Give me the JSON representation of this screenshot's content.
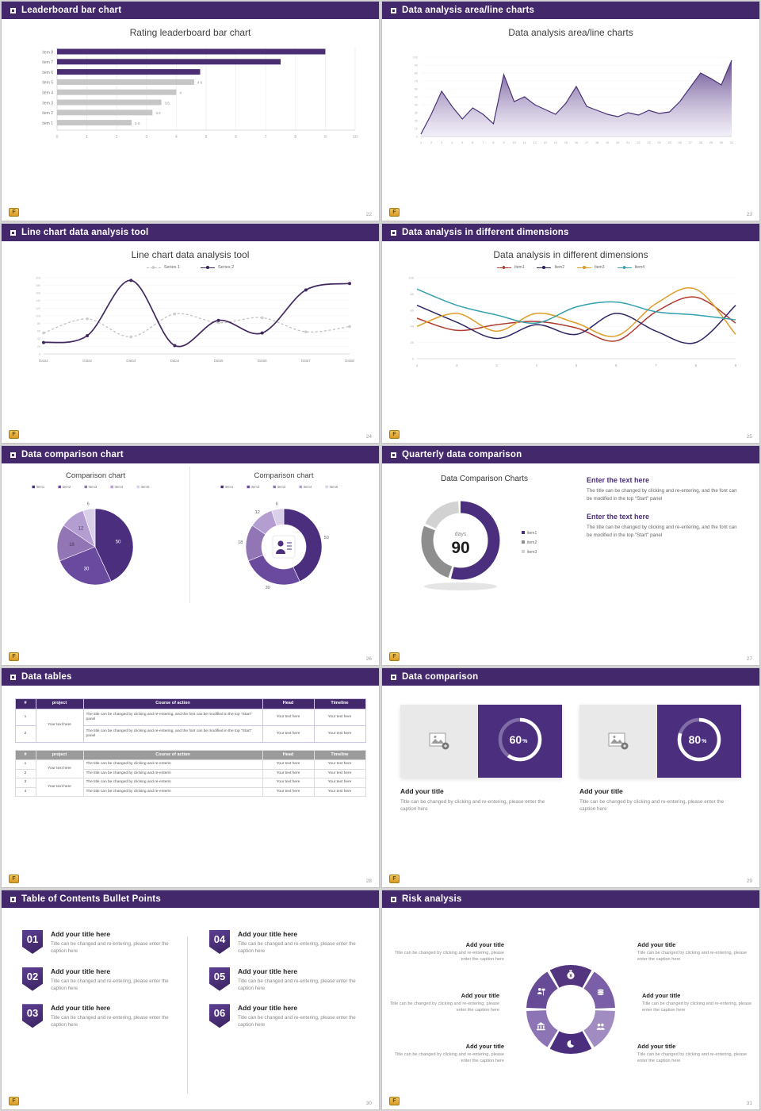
{
  "theme": {
    "header_bg": "#43286b",
    "purple": "#4b2e7e",
    "bar_purple": "#4a2d73",
    "bar_gray": "#c6c6c6",
    "gold": "#e2a93b"
  },
  "footer": {
    "logo_text": "F"
  },
  "slides": {
    "s1": {
      "header": "Leaderboard bar chart",
      "page": "22",
      "chart_data": {
        "type": "bar",
        "orientation": "horizontal",
        "title": "Rating leaderboard bar chart",
        "categories": [
          "item 1",
          "item 2",
          "item 3",
          "item 4",
          "item 5",
          "item 6",
          "item 7",
          "item 8"
        ],
        "values": [
          2.5,
          3.2,
          3.5,
          4,
          4.6,
          4.8,
          7.5,
          9
        ],
        "colors": [
          "#c6c6c6",
          "#c6c6c6",
          "#c6c6c6",
          "#c6c6c6",
          "#c6c6c6",
          "#4a2d73",
          "#4a2d73",
          "#4a2d73"
        ],
        "value_labels": [
          "2.5",
          "3.2",
          "3.5",
          "4",
          "4.6",
          "",
          "",
          ""
        ],
        "xlim": [
          0,
          10
        ],
        "x_ticks": [
          0,
          1,
          2,
          3,
          4,
          5,
          6,
          7,
          8,
          9,
          10
        ]
      }
    },
    "s2": {
      "header": "Data analysis area/line charts",
      "page": "23",
      "chart_data": {
        "type": "area",
        "title": "Data analysis area/line charts",
        "x": [
          1,
          2,
          3,
          4,
          5,
          6,
          7,
          8,
          9,
          10,
          11,
          12,
          13,
          14,
          15,
          16,
          17,
          18,
          19,
          20,
          21,
          22,
          23,
          24,
          25,
          26,
          27,
          28,
          29,
          30,
          31
        ],
        "values": [
          3,
          28,
          57,
          38,
          22,
          36,
          28,
          16,
          78,
          44,
          50,
          40,
          34,
          28,
          42,
          63,
          38,
          33,
          28,
          25,
          30,
          27,
          33,
          29,
          31,
          44,
          62,
          80,
          73,
          65,
          96
        ],
        "ylim": [
          0,
          100
        ],
        "y_tick_step": 10,
        "line_color": "#4a3178",
        "fill_top": "#5a4088",
        "fill_bottom": "#e4ddf0"
      }
    },
    "s3": {
      "header": "Line chart data analysis tool",
      "page": "24",
      "chart_data": {
        "type": "line",
        "title": "Line chart data analysis tool",
        "categories": [
          "Data1",
          "Data2",
          "Data3",
          "Data4",
          "Data5",
          "Data6",
          "Data7",
          "Data8"
        ],
        "series": [
          {
            "name": "Series 1",
            "color": "#bcbcbc",
            "dashed": true,
            "values": [
              55,
              92,
              45,
              105,
              82,
              95,
              58,
              72
            ]
          },
          {
            "name": "Series 2",
            "color": "#41295f",
            "dashed": false,
            "values": [
              30,
              48,
              193,
              22,
              88,
              55,
              168,
              185
            ]
          }
        ],
        "ylim": [
          0,
          200
        ],
        "y_tick_step": 20
      }
    },
    "s4": {
      "header": "Data analysis in different dimensions",
      "page": "25",
      "chart_data": {
        "type": "line",
        "title": "Data analysis in different dimensions",
        "x": [
          1,
          2,
          3,
          4,
          5,
          6,
          7,
          8,
          9
        ],
        "series": [
          {
            "name": "Item1",
            "color": "#b03a2e",
            "values": [
              50,
              35,
              42,
              46,
              38,
              22,
              58,
              76,
              44
            ]
          },
          {
            "name": "Item2",
            "color": "#2e2566",
            "values": [
              66,
              45,
              25,
              42,
              30,
              56,
              34,
              20,
              66
            ]
          },
          {
            "name": "Item3",
            "color": "#e09c28",
            "values": [
              40,
              56,
              34,
              56,
              44,
              28,
              68,
              86,
              30
            ]
          },
          {
            "name": "Item4",
            "color": "#33a0ad",
            "values": [
              86,
              66,
              54,
              44,
              64,
              70,
              58,
              54,
              48
            ]
          }
        ],
        "ylim": [
          0,
          100
        ],
        "y_tick_step": 20
      }
    },
    "s5": {
      "header": "Data comparison chart",
      "page": "26",
      "chart_data": [
        {
          "type": "pie",
          "title": "Comparison chart",
          "labels": [
            "Item1",
            "Item2",
            "Item3",
            "Item4",
            "Item5"
          ],
          "values": [
            50,
            30,
            18,
            12,
            6
          ],
          "colors": [
            "#4b2e7e",
            "#6a4a9e",
            "#9175b5",
            "#b49dd1",
            "#d9cfe9"
          ]
        },
        {
          "type": "donut",
          "title": "Comparison chart",
          "labels": [
            "Item1",
            "Item2",
            "Item3",
            "Item4",
            "Item5"
          ],
          "values": [
            50,
            30,
            18,
            12,
            6
          ],
          "colors": [
            "#4b2e7e",
            "#6a4a9e",
            "#9175b5",
            "#b49dd1",
            "#d9cfe9"
          ]
        }
      ]
    },
    "s6": {
      "header": "Quarterly data comparison",
      "page": "27",
      "chart_data": {
        "type": "donut",
        "title": "Data Comparison Charts",
        "center_label": "days",
        "center_value": "90",
        "labels": [
          "item1",
          "item2",
          "item3"
        ],
        "values": [
          55,
          27,
          18
        ],
        "colors": [
          "#4b2e7e",
          "#8e8e8e",
          "#d2d2d2"
        ]
      },
      "blocks": [
        {
          "title": "Enter the text here",
          "body": "The title can be changed by clicking and re-entering, and the font can be modified in the top \"Start\" panel"
        },
        {
          "title": "Enter the text here",
          "body": "The title can be changed by clicking and re-entering, and the font can be modified in the top \"Start\" panel"
        }
      ]
    },
    "s7": {
      "header": "Data tables",
      "page": "28",
      "t1": {
        "headers": [
          "#",
          "project",
          "Course of action",
          "Head",
          "Timeline"
        ],
        "project": "Your text here",
        "rows": [
          {
            "num": "1",
            "course": "The title can be changed by clicking and re-entering, and the font can be modified in the top \"Start\" panel",
            "head": "Your text here",
            "timeline": "Your text here"
          },
          {
            "num": "2",
            "course": "The title can be changed by clicking and re-entering, and the font can be modified in the top \"Start\" panel",
            "head": "Your text here",
            "timeline": "Your text here"
          }
        ]
      },
      "t2": {
        "headers": [
          "#",
          "project",
          "Course of action",
          "Head",
          "Timeline"
        ],
        "projects": [
          "Your text here",
          "Your text here"
        ],
        "rows": [
          {
            "num": "1",
            "course": "The title can be changed by clicking and re-enterin",
            "head": "Your text here",
            "timeline": "Your text here"
          },
          {
            "num": "2",
            "course": "The title can be changed by clicking and re-enterin",
            "head": "Your text here",
            "timeline": "Your text here"
          },
          {
            "num": "3",
            "course": "The title can be changed by clicking and re-enterin",
            "head": "Your text here",
            "timeline": "Your text here"
          },
          {
            "num": "4",
            "course": "The title can be changed by clicking and re-enterin",
            "head": "Your text here",
            "timeline": "Your text here"
          }
        ]
      }
    },
    "s8": {
      "header": "Data comparison",
      "page": "29",
      "cards": [
        {
          "percent": 60,
          "value": "60",
          "title": "Add your title",
          "caption": "Title can be changed by clicking and re-entering, please enter the caption here"
        },
        {
          "percent": 80,
          "value": "80",
          "title": "Add your title",
          "caption": "Title can be changed by clicking and re-entering, please enter the caption here"
        }
      ]
    },
    "s9": {
      "header": "Table of Contents Bullet Points",
      "page": "30",
      "items": [
        {
          "num": "01",
          "title": "Add your title here",
          "caption": "Title can be changed and re-entering, please enter the caption here"
        },
        {
          "num": "04",
          "title": "Add your title here",
          "caption": "Title can be changed and re-entering, please enter the caption here"
        },
        {
          "num": "02",
          "title": "Add your title here",
          "caption": "Title can be changed and re-entering, please enter the caption here"
        },
        {
          "num": "05",
          "title": "Add your title here",
          "caption": "Title can be changed and re-entering, please enter the caption here"
        },
        {
          "num": "03",
          "title": "Add your title here",
          "caption": "Title can be changed and re-entering, please enter the caption here"
        },
        {
          "num": "06",
          "title": "Add your title here",
          "caption": "Title can be changed and re-entering, please enter the caption here"
        }
      ]
    },
    "s10": {
      "header": "Risk analysis",
      "page": "31",
      "wheel_colors": [
        "#53357f",
        "#7b5ea8",
        "#a18cc2",
        "#4b2e7e",
        "#8d74b4",
        "#684b97"
      ],
      "wheel_icons": [
        "money-bag",
        "coins",
        "people",
        "pie-chart",
        "bank",
        "presenter"
      ],
      "items": [
        {
          "title": "Add your title",
          "caption": "Title can be changed by clicking and re-entering, please enter the caption here"
        },
        {
          "title": "Add your title",
          "caption": "Title can be changed by clicking and re-entering, please enter the caption here"
        },
        {
          "title": "Add your title",
          "caption": "Title can be changed by clicking and re-entering, please enter the caption here"
        },
        {
          "title": "Add your title",
          "caption": "Title can be changed by clicking and re-entering, please enter the caption here"
        },
        {
          "title": "Add your title",
          "caption": "Title can be changed by clicking and re-entering, please enter the caption here"
        },
        {
          "title": "Add your title",
          "caption": "Title can be changed by clicking and re-entering, please enter the caption here"
        }
      ]
    }
  }
}
